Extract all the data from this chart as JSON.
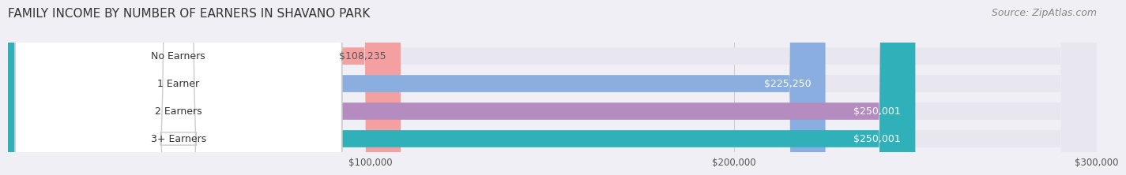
{
  "title": "FAMILY INCOME BY NUMBER OF EARNERS IN SHAVANO PARK",
  "source": "Source: ZipAtlas.com",
  "categories": [
    "No Earners",
    "1 Earner",
    "2 Earners",
    "3+ Earners"
  ],
  "values": [
    108235,
    225250,
    250001,
    250001
  ],
  "bar_colors": [
    "#f4a0a0",
    "#8aaee0",
    "#b48cc0",
    "#30b0b8"
  ],
  "label_colors": [
    "#555555",
    "#ffffff",
    "#ffffff",
    "#ffffff"
  ],
  "value_labels": [
    "$108,235",
    "$225,250",
    "$250,001",
    "$250,001"
  ],
  "xlim": [
    0,
    300000
  ],
  "xticks": [
    100000,
    200000,
    300000
  ],
  "xtick_labels": [
    "$100,000",
    "$200,000",
    "$300,000"
  ],
  "background_color": "#f0eff5",
  "bar_background_color": "#e8e7f0",
  "title_fontsize": 11,
  "source_fontsize": 9,
  "label_fontsize": 9,
  "value_fontsize": 9
}
